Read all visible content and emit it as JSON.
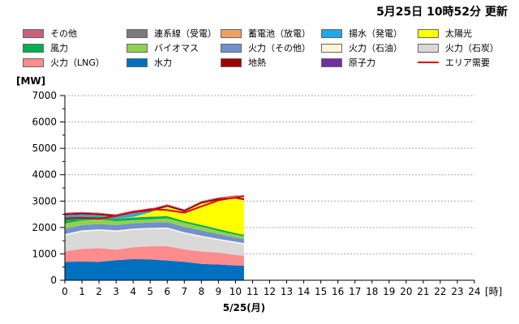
{
  "header": {
    "updated_label": "5月25日 10時52分 更新"
  },
  "legend": [
    {
      "label": "その他",
      "color": "#c8607e",
      "kind": "box"
    },
    {
      "label": "連系線（受電）",
      "color": "#7b7b7b",
      "kind": "box"
    },
    {
      "label": "蓄電池（放電）",
      "color": "#f0a060",
      "kind": "box"
    },
    {
      "label": "揚水（発電）",
      "color": "#20a8e8",
      "kind": "box"
    },
    {
      "label": "太陽光",
      "color": "#ffff00",
      "kind": "box"
    },
    {
      "label": "風力",
      "color": "#00b050",
      "kind": "box"
    },
    {
      "label": "バイオマス",
      "color": "#92d050",
      "kind": "box"
    },
    {
      "label": "火力（その他）",
      "color": "#7090d0",
      "kind": "box"
    },
    {
      "label": "火力（石油）",
      "color": "#fff5d8",
      "kind": "box"
    },
    {
      "label": "火力（石炭）",
      "color": "#d9d9d9",
      "kind": "box"
    },
    {
      "label": "火力（LNG）",
      "color": "#ff8c8c",
      "kind": "box"
    },
    {
      "label": "水力",
      "color": "#0070c0",
      "kind": "box"
    },
    {
      "label": "地熱",
      "color": "#a00000",
      "kind": "box"
    },
    {
      "label": "原子力",
      "color": "#7030a0",
      "kind": "box"
    },
    {
      "label": "エリア需要",
      "color": "#e00000",
      "kind": "line"
    }
  ],
  "chart_data": {
    "type": "area",
    "stacked": true,
    "ylabel": "[MW]",
    "xlabel": "5/25(月)",
    "x_unit_label": "[時]",
    "ylim": [
      0,
      7000
    ],
    "yticks": [
      0,
      1000,
      2000,
      3000,
      4000,
      5000,
      6000,
      7000
    ],
    "xlim": [
      0,
      24
    ],
    "xticks": [
      0,
      1,
      2,
      3,
      4,
      5,
      6,
      7,
      8,
      9,
      10,
      11,
      12,
      13,
      14,
      15,
      16,
      17,
      18,
      19,
      20,
      21,
      22,
      23,
      24
    ],
    "grid": true,
    "x": [
      0,
      1,
      2,
      3,
      4,
      5,
      6,
      7,
      8,
      9,
      10,
      10.5
    ],
    "series": [
      {
        "name": "水力",
        "color": "#0070c0",
        "values": [
          700,
          710,
          700,
          760,
          800,
          790,
          750,
          700,
          620,
          600,
          560,
          550
        ]
      },
      {
        "name": "火力（LNG）",
        "color": "#ff8c8c",
        "values": [
          400,
          480,
          520,
          400,
          450,
          500,
          540,
          470,
          470,
          450,
          400,
          380
        ]
      },
      {
        "name": "火力（石炭）",
        "color": "#d9d9d9",
        "values": [
          600,
          650,
          660,
          680,
          660,
          650,
          660,
          600,
          550,
          470,
          450,
          430
        ]
      },
      {
        "name": "火力（石油）",
        "color": "#fff5d8",
        "values": [
          50,
          50,
          50,
          50,
          50,
          50,
          50,
          50,
          50,
          50,
          50,
          50
        ]
      },
      {
        "name": "火力（その他）",
        "color": "#7090d0",
        "values": [
          200,
          200,
          200,
          200,
          200,
          200,
          200,
          200,
          200,
          180,
          160,
          160
        ]
      },
      {
        "name": "バイオマス",
        "color": "#92d050",
        "values": [
          200,
          180,
          180,
          150,
          120,
          120,
          150,
          160,
          140,
          120,
          110,
          100
        ]
      },
      {
        "name": "風力",
        "color": "#00b050",
        "values": [
          200,
          130,
          100,
          90,
          100,
          100,
          80,
          60,
          70,
          70,
          60,
          60
        ]
      },
      {
        "name": "太陽光",
        "color": "#ffff00",
        "values": [
          0,
          0,
          0,
          0,
          20,
          160,
          350,
          350,
          800,
          1100,
          1300,
          1300
        ]
      },
      {
        "name": "揚水（発電）",
        "color": "#20a8e8",
        "values": [
          100,
          80,
          40,
          60,
          130,
          30,
          0,
          0,
          0,
          0,
          0,
          0
        ]
      },
      {
        "name": "連系線（受電）",
        "color": "#7b7b7b",
        "values": [
          20,
          20,
          20,
          20,
          20,
          20,
          10,
          10,
          10,
          10,
          10,
          10
        ]
      },
      {
        "name": "地熱",
        "color": "#a00000",
        "values": [
          60,
          60,
          60,
          60,
          60,
          60,
          60,
          60,
          60,
          60,
          60,
          60
        ]
      },
      {
        "name": "蓄電池（放電）",
        "color": "#f0a060",
        "values": [
          0,
          0,
          0,
          0,
          0,
          0,
          0,
          0,
          0,
          0,
          30,
          50
        ]
      },
      {
        "name": "その他",
        "color": "#c8607e",
        "values": [
          30,
          30,
          30,
          30,
          30,
          30,
          30,
          30,
          30,
          30,
          30,
          30
        ]
      }
    ],
    "demand": {
      "name": "エリア需要",
      "color": "#e00000",
      "values": [
        2340,
        2370,
        2330,
        2440,
        2590,
        2700,
        2660,
        2560,
        2800,
        3030,
        3140,
        3200
      ]
    }
  }
}
